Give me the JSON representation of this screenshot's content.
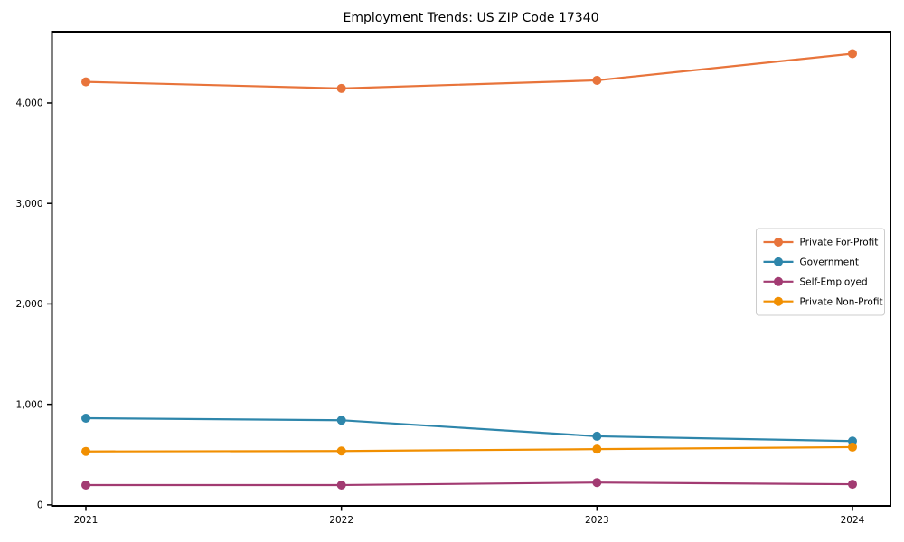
{
  "title": "Employment Trends: US ZIP Code 17340",
  "chart_data": {
    "type": "line",
    "title": "Employment Trends: US ZIP Code 17340",
    "xlabel": "",
    "ylabel": "",
    "categories": [
      "2021",
      "2022",
      "2023",
      "2024"
    ],
    "series": [
      {
        "name": "Private For-Profit",
        "color": "#e8743b",
        "values": [
          4210,
          4145,
          4225,
          4490
        ]
      },
      {
        "name": "Government",
        "color": "#2e86ab",
        "values": [
          862,
          842,
          683,
          635
        ]
      },
      {
        "name": "Self-Employed",
        "color": "#a23b72",
        "values": [
          197,
          197,
          222,
          205
        ]
      },
      {
        "name": "Private Non-Profit",
        "color": "#f18f01",
        "values": [
          532,
          536,
          555,
          575
        ]
      }
    ],
    "yticks": [
      0,
      1000,
      2000,
      3000,
      4000
    ],
    "ytick_labels": [
      "0",
      "1,000",
      "2,000",
      "3,000",
      "4,000"
    ],
    "ylim": [
      -10,
      4710
    ],
    "grid": false,
    "legend_position": "center right",
    "marker": "o",
    "axis_color": "#000000",
    "legend_border_color": "#cccccc",
    "background_color": "#ffffff"
  }
}
